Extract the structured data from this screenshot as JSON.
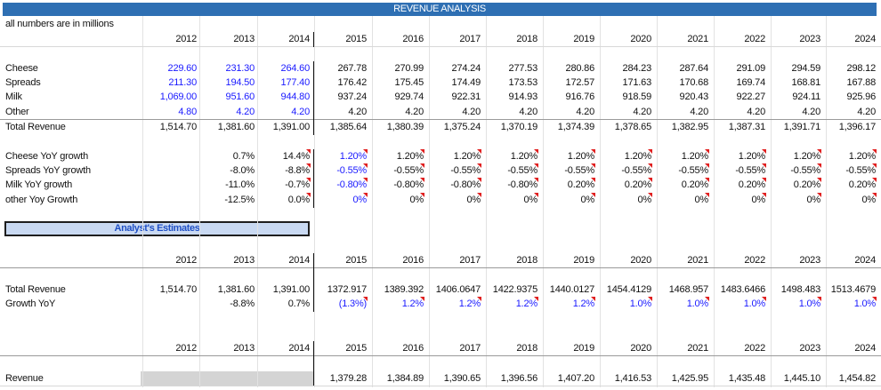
{
  "title": "REVENUE ANALYSIS",
  "subtitle": "all numbers are in millions",
  "years": [
    "2012",
    "2013",
    "2014",
    "2015",
    "2016",
    "2017",
    "2018",
    "2019",
    "2020",
    "2021",
    "2022",
    "2023",
    "2024"
  ],
  "rows": {
    "cheese": {
      "label": "Cheese",
      "values": [
        "229.60",
        "231.30",
        "264.60",
        "267.78",
        "270.99",
        "274.24",
        "277.53",
        "280.86",
        "284.23",
        "287.64",
        "291.09",
        "294.59",
        "298.12"
      ]
    },
    "spreads": {
      "label": "Spreads",
      "values": [
        "211.30",
        "194.50",
        "177.40",
        "176.42",
        "175.45",
        "174.49",
        "173.53",
        "172.57",
        "171.63",
        "170.68",
        "169.74",
        "168.81",
        "167.88"
      ]
    },
    "milk": {
      "label": "Milk",
      "values": [
        "1,069.00",
        "951.60",
        "944.80",
        "937.24",
        "929.74",
        "922.31",
        "914.93",
        "916.76",
        "918.59",
        "920.43",
        "922.27",
        "924.11",
        "925.96"
      ]
    },
    "other": {
      "label": "Other",
      "values": [
        "4.80",
        "4.20",
        "4.20",
        "4.20",
        "4.20",
        "4.20",
        "4.20",
        "4.20",
        "4.20",
        "4.20",
        "4.20",
        "4.20",
        "4.20"
      ]
    },
    "total": {
      "label": "Total Revenue",
      "values": [
        "1,514.70",
        "1,381.60",
        "1,391.00",
        "1,385.64",
        "1,380.39",
        "1,375.24",
        "1,370.19",
        "1,374.39",
        "1,378.65",
        "1,382.95",
        "1,387.31",
        "1,391.71",
        "1,396.17"
      ]
    }
  },
  "growth": {
    "cheese": {
      "label": "Cheese YoY growth",
      "values": [
        "",
        "0.7%",
        "14.4%",
        "1.20%",
        "1.20%",
        "1.20%",
        "1.20%",
        "1.20%",
        "1.20%",
        "1.20%",
        "1.20%",
        "1.20%",
        "1.20%"
      ]
    },
    "spreads": {
      "label": "Spreads YoY growth",
      "values": [
        "",
        "-8.0%",
        "-8.8%",
        "-0.55%",
        "-0.55%",
        "-0.55%",
        "-0.55%",
        "-0.55%",
        "-0.55%",
        "-0.55%",
        "-0.55%",
        "-0.55%",
        "-0.55%"
      ]
    },
    "milk": {
      "label": "Milk YoY growth",
      "values": [
        "",
        "-11.0%",
        "-0.7%",
        "-0.80%",
        "-0.80%",
        "-0.80%",
        "-0.80%",
        "0.20%",
        "0.20%",
        "0.20%",
        "0.20%",
        "0.20%",
        "0.20%"
      ]
    },
    "other": {
      "label": "other Yoy Growth",
      "values": [
        "",
        "-12.5%",
        "0.0%",
        "0%",
        "0%",
        "0%",
        "0%",
        "0%",
        "0%",
        "0%",
        "0%",
        "0%",
        "0%"
      ]
    }
  },
  "estimates": {
    "header": "Analyst's Estimates",
    "total": {
      "label": "Total Revenue",
      "values": [
        "1,514.70",
        "1,381.60",
        "1,391.00",
        "1372.917",
        "1389.392",
        "1406.0647",
        "1422.9375",
        "1440.0127",
        "1454.4129",
        "1468.957",
        "1483.6466",
        "1498.483",
        "1513.4679"
      ]
    },
    "growth": {
      "label": "Growth YoY",
      "values": [
        "",
        "-8.8%",
        "0.7%",
        "(1.3%)",
        "1.2%",
        "1.2%",
        "1.2%",
        "1.2%",
        "1.0%",
        "1.0%",
        "1.0%",
        "1.0%",
        "1.0%"
      ]
    }
  },
  "revenue": {
    "label": "Revenue",
    "values": [
      "",
      "",
      "",
      "1,379.28",
      "1,384.89",
      "1,390.65",
      "1,396.56",
      "1,407.20",
      "1,416.53",
      "1,425.95",
      "1,435.48",
      "1,445.10",
      "1,454.82"
    ]
  },
  "colors": {
    "title_bar": "#2e6fb3",
    "input_blue": "#1a1aff",
    "estimates_fill": "#c9d9f2",
    "comment_flag": "#e02020"
  }
}
